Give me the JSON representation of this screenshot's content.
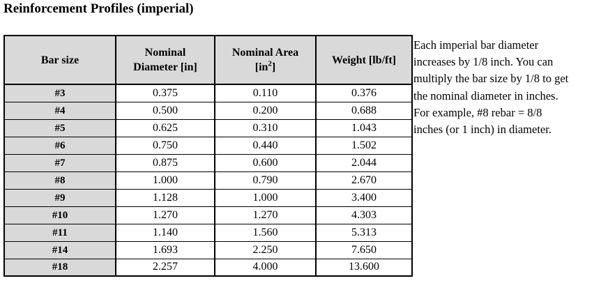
{
  "title": "Reinforcement Profiles (imperial)",
  "colors": {
    "header_fill": "#d9d9d9",
    "first_column_fill": "#d9d9d9",
    "border": "#000000",
    "text": "#000000",
    "body_fill": "#ffffff"
  },
  "table": {
    "columns": [
      {
        "key": "size",
        "line1": "Bar size"
      },
      {
        "key": "diameter",
        "line1": "Nominal",
        "line2": "Diameter [in]"
      },
      {
        "key": "area",
        "line1": "Nominal Area",
        "line2_pre": "[in",
        "line2_sup": "2",
        "line2_post": "]"
      },
      {
        "key": "weight",
        "line1": "Weight [lb/ft]"
      }
    ],
    "rows": [
      {
        "size": "#3",
        "diameter": "0.375",
        "area": "0.110",
        "weight": "0.376"
      },
      {
        "size": "#4",
        "diameter": "0.500",
        "area": "0.200",
        "weight": "0.688"
      },
      {
        "size": "#5",
        "diameter": "0.625",
        "area": "0.310",
        "weight": "1.043"
      },
      {
        "size": "#6",
        "diameter": "0.750",
        "area": "0.440",
        "weight": "1.502"
      },
      {
        "size": "#7",
        "diameter": "0.875",
        "area": "0.600",
        "weight": "2.044"
      },
      {
        "size": "#8",
        "diameter": "1.000",
        "area": "0.790",
        "weight": "2.670"
      },
      {
        "size": "#9",
        "diameter": "1.128",
        "area": "1.000",
        "weight": "3.400"
      },
      {
        "size": "#10",
        "diameter": "1.270",
        "area": "1.270",
        "weight": "4.303"
      },
      {
        "size": "#11",
        "diameter": "1.140",
        "area": "1.560",
        "weight": "5.313"
      },
      {
        "size": "#14",
        "diameter": "1.693",
        "area": "2.250",
        "weight": "7.650"
      },
      {
        "size": "#18",
        "diameter": "2.257",
        "area": "4.000",
        "weight": "13.600"
      }
    ]
  },
  "note": {
    "lines": [
      "Each imperial bar diameter",
      "increases by 1/8 inch. You can",
      "multiply the bar size by 1/8 to get",
      "the nominal diameter in inches.",
      "For example, #8 rebar = 8/8",
      "inches (or 1 inch) in diameter."
    ]
  }
}
